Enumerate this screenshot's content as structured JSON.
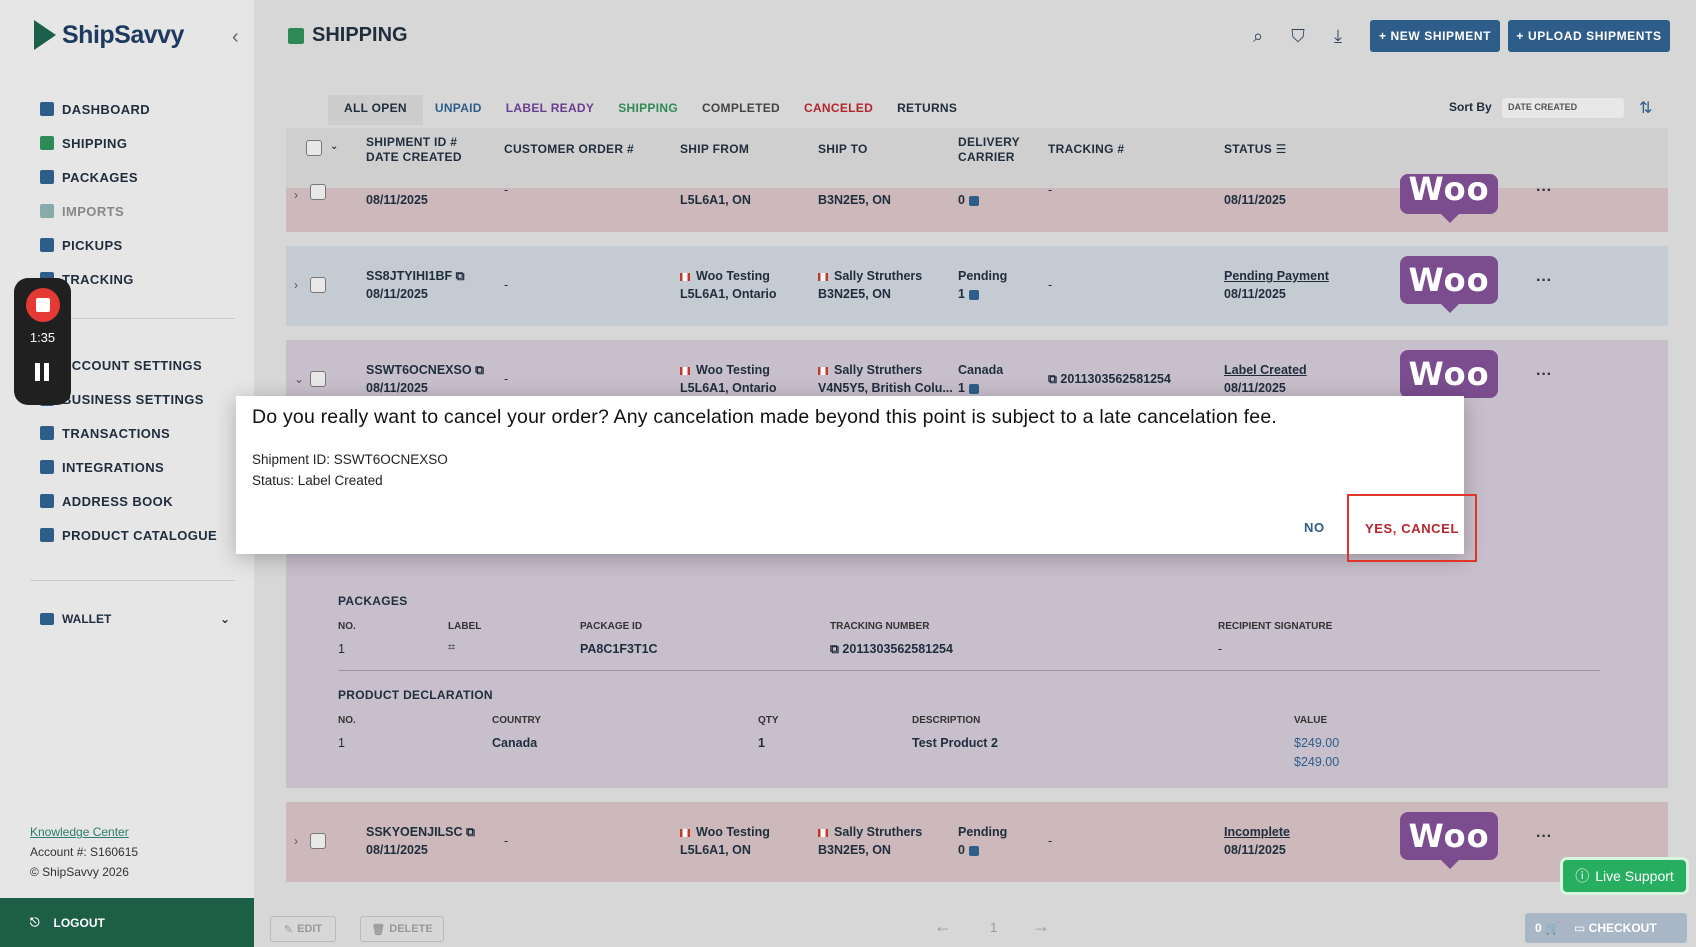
{
  "app": {
    "name": "ShipSavvy"
  },
  "sidebar": {
    "items": [
      {
        "label": "DASHBOARD"
      },
      {
        "label": "SHIPPING"
      },
      {
        "label": "PACKAGES"
      },
      {
        "label": "IMPORTS"
      },
      {
        "label": "PICKUPS"
      },
      {
        "label": "TRACKING"
      }
    ],
    "items2": [
      {
        "label": "ACCOUNT SETTINGS"
      },
      {
        "label": "BUSINESS SETTINGS"
      },
      {
        "label": "TRANSACTIONS"
      },
      {
        "label": "INTEGRATIONS"
      },
      {
        "label": "ADDRESS BOOK"
      },
      {
        "label": "PRODUCT CATALOGUE"
      }
    ],
    "wallet": "WALLET",
    "knowledge_center": "Knowledge Center",
    "account": "Account #: S160615",
    "copyright": "© ShipSavvy 2026",
    "logout": "LOGOUT"
  },
  "recorder": {
    "time": "1:35"
  },
  "header": {
    "title": "SHIPPING",
    "new_shipment": "+ NEW SHIPMENT",
    "upload_shipments": "+ UPLOAD SHIPMENTS"
  },
  "tabs": [
    {
      "label": "ALL OPEN",
      "color": "#1f2d3d"
    },
    {
      "label": "UNPAID",
      "color": "#2f5d8a"
    },
    {
      "label": "LABEL READY",
      "color": "#6a3d8f"
    },
    {
      "label": "SHIPPING",
      "color": "#2e8b57"
    },
    {
      "label": "COMPLETED",
      "color": "#444444"
    },
    {
      "label": "CANCELED",
      "color": "#b3262d"
    },
    {
      "label": "RETURNS",
      "color": "#1f2d3d"
    }
  ],
  "sort": {
    "label": "Sort By",
    "value": "DATE CREATED"
  },
  "columns": {
    "shipment_id": "SHIPMENT ID #",
    "date_created": "DATE CREATED",
    "customer_order": "CUSTOMER ORDER #",
    "ship_from": "SHIP FROM",
    "ship_to": "SHIP TO",
    "delivery": "DELIVERY",
    "carrier": "CARRIER",
    "tracking": "TRACKING #",
    "status": "STATUS"
  },
  "rows": [
    {
      "id": "",
      "date": "08/11/2025",
      "order": "-",
      "from_name": "",
      "from_addr": "L5L6A1, ON",
      "to_name": "",
      "to_addr": "B3N2E5, ON",
      "delivery": "",
      "carrier": "0",
      "tracking": "-",
      "status": "",
      "status_date": "08/11/2025",
      "woo": "Woo"
    },
    {
      "id": "SS8JTYIHI1BF",
      "date": "08/11/2025",
      "order": "-",
      "from_name": "Woo Testing",
      "from_addr": "L5L6A1, Ontario",
      "to_name": "Sally Struthers",
      "to_addr": "B3N2E5, ON",
      "delivery": "Pending",
      "carrier": "1",
      "tracking": "-",
      "status": "Pending Payment",
      "status_date": "08/11/2025",
      "woo": "Woo"
    },
    {
      "id": "SSWT6OCNEXSO",
      "date": "08/11/2025",
      "order": "-",
      "from_name": "Woo Testing",
      "from_addr": "L5L6A1, Ontario",
      "to_name": "Sally Struthers",
      "to_addr": "V4N5Y5, British Colu...",
      "delivery": "Canada",
      "carrier": "1",
      "tracking": "2011303562581254",
      "status": "Label Created",
      "status_date": "08/11/2025",
      "woo": "Woo"
    },
    {
      "id": "SSKYOENJILSC",
      "date": "08/11/2025",
      "order": "-",
      "from_name": "Woo Testing",
      "from_addr": "L5L6A1, ON",
      "to_name": "Sally Struthers",
      "to_addr": "B3N2E5, ON",
      "delivery": "Pending",
      "carrier": "0",
      "tracking": "-",
      "status": "Incomplete",
      "status_date": "08/11/2025",
      "woo": "Woo"
    }
  ],
  "details": {
    "packages_title": "PACKAGES",
    "pkg_cols": [
      "NO.",
      "LABEL",
      "PACKAGE ID",
      "TRACKING NUMBER",
      "RECIPIENT SIGNATURE"
    ],
    "pkg_row": {
      "no": "1",
      "package_id": "PA8C1F3T1C",
      "tracking": "2011303562581254",
      "signature": "-"
    },
    "decl_title": "PRODUCT DECLARATION",
    "decl_cols": [
      "NO.",
      "COUNTRY",
      "QTY",
      "DESCRIPTION",
      "VALUE"
    ],
    "decl_row": {
      "no": "1",
      "country": "Canada",
      "qty": "1",
      "description": "Test Product 2",
      "value": "$249.00",
      "total": "$249.00"
    }
  },
  "bottom": {
    "edit": "EDIT",
    "delete": "DELETE",
    "page": "1",
    "cart_count": "0",
    "checkout": "CHECKOUT"
  },
  "live_support": "Live Support",
  "modal": {
    "title": "Do you really want to cancel your order? Any cancelation made beyond this point is subject to a late cancelation fee.",
    "shipment_line": "Shipment ID: SSWT6OCNEXSO",
    "status_line": "Status: Label Created",
    "no_label": "NO",
    "yes_label": "YES, CANCEL"
  }
}
